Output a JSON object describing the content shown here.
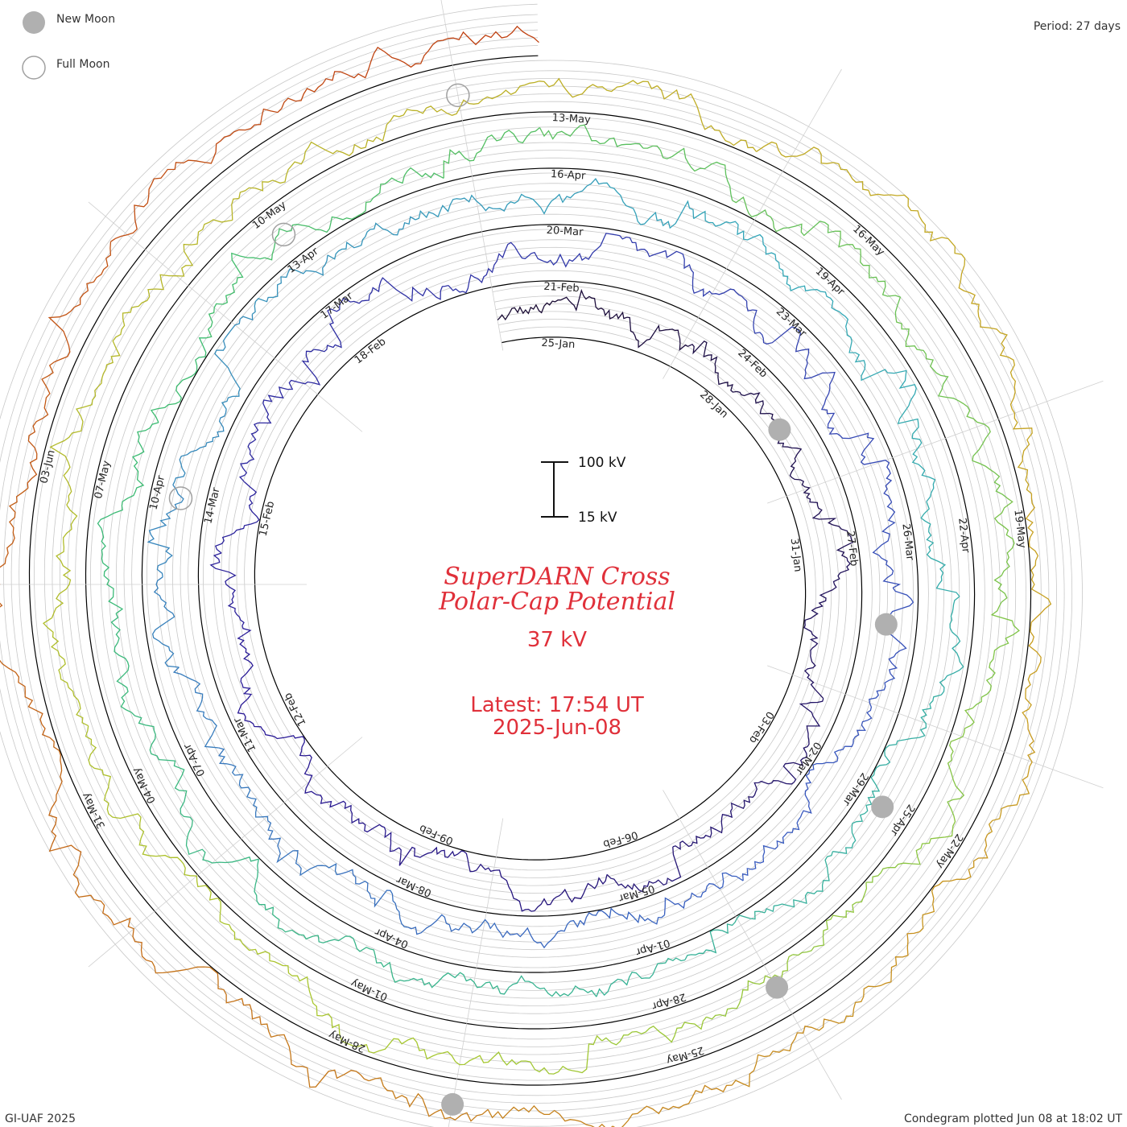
{
  "header": {
    "legend_new_moon": "New Moon",
    "legend_full_moon": "Full Moon",
    "period": "Period: 27 days"
  },
  "center": {
    "title_line1": "SuperDARN Cross",
    "title_line2": "Polar-Cap Potential",
    "current_value": "37 kV",
    "latest_line1": "Latest: 17:54 UT",
    "latest_line2": "2025-Jun-08",
    "scale_top": "100 kV",
    "scale_bottom": "15 kV"
  },
  "footer": {
    "left": "GI-UAF 2025",
    "right": "Condegram plotted Jun 08 at 18:02 UT"
  },
  "colors": {
    "title": "#e0303a",
    "rings": [
      "#1a0c30",
      "#2a1a96",
      "#3a5cc0",
      "#33a8b8",
      "#3cbc70",
      "#a8c830",
      "#c8a020",
      "#c04010"
    ]
  },
  "chart_data": {
    "type": "line",
    "chart_kind": "condegram (spiral time series)",
    "period_days": 27,
    "start_date": "2025-Jan-24",
    "end_date": "2025-Jun-08",
    "units": "kV",
    "scale_range_kV": [
      15,
      100
    ],
    "latest_value_kV": 37,
    "date_labels": [
      "25-Jan",
      "28-Jan",
      "31-Jan",
      "03-Feb",
      "06-Feb",
      "09-Feb",
      "12-Feb",
      "15-Feb",
      "18-Feb",
      "21-Feb",
      "24-Feb",
      "27-Feb",
      "02-Mar",
      "05-Mar",
      "08-Mar",
      "11-Mar",
      "14-Mar",
      "17-Mar",
      "20-Mar",
      "23-Mar",
      "26-Mar",
      "29-Mar",
      "01-Apr",
      "04-Apr",
      "07-Apr",
      "10-Apr",
      "13-Apr",
      "16-Apr",
      "19-Apr",
      "22-Apr",
      "25-Apr",
      "28-Apr",
      "01-May",
      "04-May",
      "07-May",
      "10-May",
      "13-May",
      "16-May",
      "19-May",
      "22-May",
      "25-May",
      "28-May",
      "31-May",
      "03-Jun"
    ],
    "new_moons": [
      "2025-Jan-29",
      "2025-Feb-28",
      "2025-Mar-29",
      "2025-Apr-27",
      "2025-May-27"
    ],
    "full_moons": [
      "2025-Mar-14",
      "2025-Apr-13",
      "2025-May-12"
    ],
    "series_summary": "Cross polar-cap potential plotted every ~minute along a 27-day spiral; values mostly 20-80 kV with storm peaks near 100 kV"
  }
}
